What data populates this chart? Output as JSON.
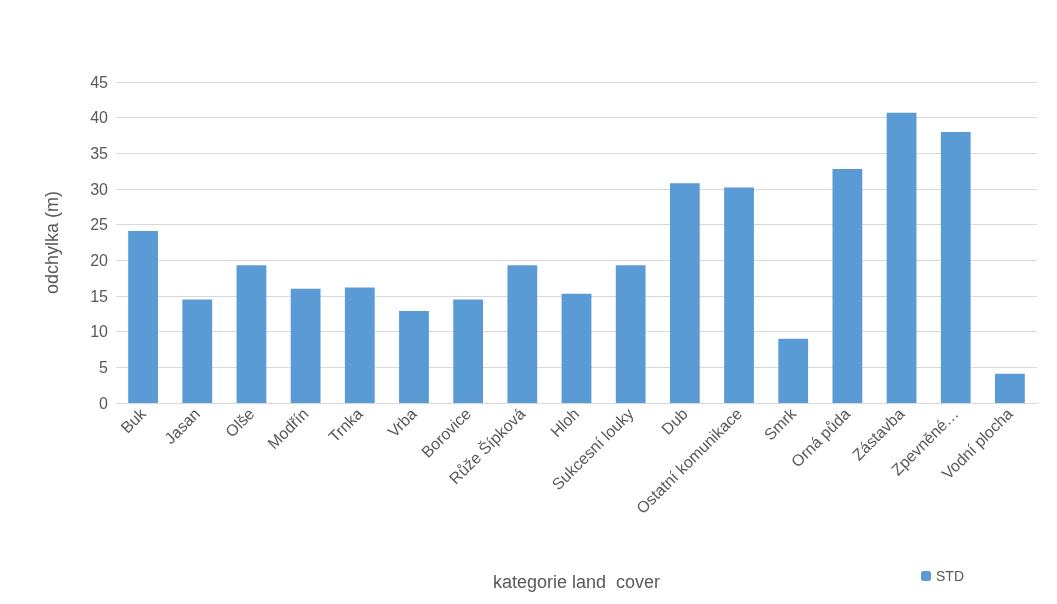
{
  "chart_data": {
    "type": "bar",
    "xlabel": "kategorie land  cover",
    "ylabel": "odchylka (m)",
    "categories": [
      "Buk",
      "Jasan",
      "Olše",
      "Modřín",
      "Trnka",
      "Vrba",
      "Borovice",
      "Růže Šípková",
      "Hloh",
      "Sukcesní louky",
      "Dub",
      "Ostatní komunikace",
      "Smrk",
      "Orná půda",
      "Zástavba",
      "Zpevněné…",
      "Vodní plocha"
    ],
    "series": [
      {
        "name": "STD",
        "color": "#5b9bd5",
        "values": [
          24.1,
          14.5,
          19.3,
          16.0,
          16.2,
          12.9,
          14.5,
          19.3,
          15.3,
          19.3,
          30.8,
          30.2,
          9.0,
          32.8,
          40.7,
          38.0,
          4.1
        ]
      }
    ],
    "ylim": [
      0,
      45
    ],
    "yticks": [
      0,
      5,
      10,
      15,
      20,
      25,
      30,
      35,
      40,
      45
    ],
    "grid": "y",
    "legend": "bottom right"
  }
}
